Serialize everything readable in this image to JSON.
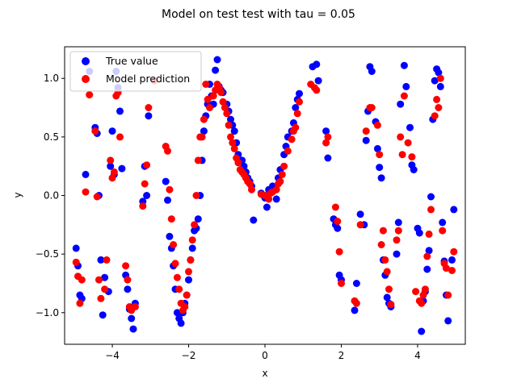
{
  "chart_data": {
    "type": "scatter",
    "title": "Model on test test with tau = 0.05",
    "xlabel": "x",
    "ylabel": "y",
    "xlim": [
      -5.25,
      5.25
    ],
    "ylim": [
      -1.27,
      1.27
    ],
    "x_ticks": [
      -4,
      -2,
      0,
      2,
      4
    ],
    "y_ticks": [
      -1.0,
      -0.5,
      0.0,
      0.5,
      1.0
    ],
    "x_tick_labels": [
      "−4",
      "−2",
      "0",
      "2",
      "4"
    ],
    "y_tick_labels": [
      "−1.0",
      "−0.5",
      "0.0",
      "0.5",
      "1.0"
    ],
    "grid": false,
    "legend_position": "top-left",
    "series": [
      {
        "name": "True value",
        "color": "#0000ff",
        "points": [
          [
            -4.95,
            -0.45
          ],
          [
            -4.9,
            -0.6
          ],
          [
            -4.85,
            -0.85
          ],
          [
            -4.8,
            -0.88
          ],
          [
            -4.7,
            0.18
          ],
          [
            -4.6,
            1.06
          ],
          [
            -4.45,
            0.58
          ],
          [
            -4.4,
            0.53
          ],
          [
            -4.35,
            0.0
          ],
          [
            -4.3,
            -0.55
          ],
          [
            -4.25,
            -1.02
          ],
          [
            -4.2,
            -0.7
          ],
          [
            -4.1,
            -0.82
          ],
          [
            -4.05,
            0.25
          ],
          [
            -4.0,
            0.55
          ],
          [
            -3.95,
            0.18
          ],
          [
            -3.9,
            1.06
          ],
          [
            -3.85,
            0.92
          ],
          [
            -3.8,
            0.72
          ],
          [
            -3.75,
            0.23
          ],
          [
            -3.65,
            -0.68
          ],
          [
            -3.6,
            -0.8
          ],
          [
            -3.55,
            -0.97
          ],
          [
            -3.5,
            -1.05
          ],
          [
            -3.45,
            -1.14
          ],
          [
            -3.4,
            -0.92
          ],
          [
            -3.2,
            -0.05
          ],
          [
            -3.15,
            0.25
          ],
          [
            -3.1,
            0.0
          ],
          [
            -3.05,
            0.68
          ],
          [
            -2.9,
            0.98
          ],
          [
            -2.6,
            0.12
          ],
          [
            -2.55,
            -0.04
          ],
          [
            -2.5,
            -0.35
          ],
          [
            -2.45,
            -0.45
          ],
          [
            -2.4,
            -0.6
          ],
          [
            -2.35,
            -0.8
          ],
          [
            -2.3,
            -1.0
          ],
          [
            -2.25,
            -1.05
          ],
          [
            -2.2,
            -1.09
          ],
          [
            -2.15,
            -1.0
          ],
          [
            -2.1,
            -0.92
          ],
          [
            -2.05,
            -0.85
          ],
          [
            -2.0,
            -0.72
          ],
          [
            -1.95,
            -0.55
          ],
          [
            -1.9,
            -0.45
          ],
          [
            -1.85,
            -0.3
          ],
          [
            -1.8,
            -0.28
          ],
          [
            -1.75,
            -0.2
          ],
          [
            -1.7,
            0.0
          ],
          [
            -1.65,
            0.3
          ],
          [
            -1.6,
            0.55
          ],
          [
            -1.55,
            0.68
          ],
          [
            -1.5,
            0.78
          ],
          [
            -1.45,
            0.95
          ],
          [
            -1.4,
            0.85
          ],
          [
            -1.35,
            0.78
          ],
          [
            -1.3,
            1.07
          ],
          [
            -1.25,
            1.16
          ],
          [
            -1.2,
            0.93
          ],
          [
            -1.15,
            0.9
          ],
          [
            -1.1,
            0.88
          ],
          [
            -1.0,
            0.78
          ],
          [
            -0.95,
            0.72
          ],
          [
            -0.9,
            0.65
          ],
          [
            -0.85,
            0.6
          ],
          [
            -0.8,
            0.55
          ],
          [
            -0.75,
            0.45
          ],
          [
            -0.7,
            0.35
          ],
          [
            -0.6,
            0.3
          ],
          [
            -0.55,
            0.25
          ],
          [
            -0.5,
            0.2
          ],
          [
            -0.45,
            0.15
          ],
          [
            -0.4,
            0.12
          ],
          [
            -0.35,
            0.08
          ],
          [
            -0.3,
            -0.21
          ],
          [
            -0.1,
            0.02
          ],
          [
            0.0,
            -0.02
          ],
          [
            0.05,
            -0.1
          ],
          [
            0.1,
            0.05
          ],
          [
            0.2,
            0.08
          ],
          [
            0.3,
            -0.03
          ],
          [
            0.35,
            0.15
          ],
          [
            0.4,
            0.22
          ],
          [
            0.5,
            0.35
          ],
          [
            0.55,
            0.42
          ],
          [
            0.6,
            0.5
          ],
          [
            0.7,
            0.55
          ],
          [
            0.75,
            0.62
          ],
          [
            0.8,
            0.75
          ],
          [
            0.85,
            0.82
          ],
          [
            0.9,
            0.87
          ],
          [
            1.25,
            1.1
          ],
          [
            1.35,
            1.12
          ],
          [
            1.4,
            0.98
          ],
          [
            1.6,
            0.55
          ],
          [
            1.65,
            0.32
          ],
          [
            1.8,
            -0.2
          ],
          [
            1.85,
            -0.25
          ],
          [
            1.9,
            -0.28
          ],
          [
            1.95,
            -0.68
          ],
          [
            2.0,
            -0.72
          ],
          [
            2.35,
            -0.98
          ],
          [
            2.4,
            -0.75
          ],
          [
            2.5,
            -0.16
          ],
          [
            2.6,
            -0.25
          ],
          [
            2.65,
            0.47
          ],
          [
            2.7,
            0.72
          ],
          [
            2.75,
            1.1
          ],
          [
            2.8,
            1.06
          ],
          [
            2.9,
            0.63
          ],
          [
            2.95,
            0.4
          ],
          [
            3.0,
            0.24
          ],
          [
            3.05,
            0.15
          ],
          [
            3.1,
            -0.55
          ],
          [
            3.15,
            -0.68
          ],
          [
            3.2,
            -0.87
          ],
          [
            3.25,
            -0.92
          ],
          [
            3.3,
            -0.95
          ],
          [
            3.45,
            -0.5
          ],
          [
            3.5,
            -0.23
          ],
          [
            3.55,
            0.78
          ],
          [
            3.65,
            1.11
          ],
          [
            3.7,
            0.93
          ],
          [
            3.8,
            0.58
          ],
          [
            3.85,
            0.26
          ],
          [
            3.9,
            0.22
          ],
          [
            4.0,
            -0.28
          ],
          [
            4.05,
            -0.32
          ],
          [
            4.1,
            -1.16
          ],
          [
            4.15,
            -0.9
          ],
          [
            4.2,
            -0.82
          ],
          [
            4.25,
            -0.63
          ],
          [
            4.3,
            -0.47
          ],
          [
            4.35,
            -0.01
          ],
          [
            4.4,
            0.65
          ],
          [
            4.45,
            0.98
          ],
          [
            4.5,
            1.08
          ],
          [
            4.55,
            1.05
          ],
          [
            4.6,
            0.93
          ],
          [
            4.65,
            -0.23
          ],
          [
            4.7,
            -0.56
          ],
          [
            4.75,
            -0.85
          ],
          [
            4.8,
            -1.07
          ],
          [
            4.9,
            -0.55
          ],
          [
            4.95,
            -0.12
          ]
        ]
      },
      {
        "name": "Model prediction",
        "color": "#ff0000",
        "points": [
          [
            -4.95,
            -0.57
          ],
          [
            -4.9,
            -0.69
          ],
          [
            -4.85,
            -0.92
          ],
          [
            -4.8,
            -0.72
          ],
          [
            -4.7,
            0.03
          ],
          [
            -4.6,
            0.86
          ],
          [
            -4.45,
            0.55
          ],
          [
            -4.4,
            -0.01
          ],
          [
            -4.35,
            -0.72
          ],
          [
            -4.3,
            -0.88
          ],
          [
            -4.2,
            -0.8
          ],
          [
            -4.15,
            -0.55
          ],
          [
            -4.05,
            0.3
          ],
          [
            -4.0,
            0.15
          ],
          [
            -3.95,
            0.2
          ],
          [
            -3.9,
            0.85
          ],
          [
            -3.85,
            0.88
          ],
          [
            -3.8,
            0.5
          ],
          [
            -3.65,
            -0.6
          ],
          [
            -3.6,
            -0.72
          ],
          [
            -3.55,
            -0.95
          ],
          [
            -3.5,
            -0.98
          ],
          [
            -3.4,
            -0.95
          ],
          [
            -3.2,
            -0.09
          ],
          [
            -3.15,
            0.1
          ],
          [
            -3.1,
            0.26
          ],
          [
            -3.05,
            0.75
          ],
          [
            -2.9,
            0.98
          ],
          [
            -2.6,
            0.42
          ],
          [
            -2.55,
            0.38
          ],
          [
            -2.5,
            0.05
          ],
          [
            -2.45,
            -0.2
          ],
          [
            -2.4,
            -0.42
          ],
          [
            -2.35,
            -0.58
          ],
          [
            -2.3,
            -0.7
          ],
          [
            -2.25,
            -0.8
          ],
          [
            -2.2,
            -0.92
          ],
          [
            -2.15,
            -0.98
          ],
          [
            -2.1,
            -0.95
          ],
          [
            -2.05,
            -0.85
          ],
          [
            -2.0,
            -0.65
          ],
          [
            -1.95,
            -0.55
          ],
          [
            -1.9,
            -0.38
          ],
          [
            -1.85,
            -0.25
          ],
          [
            -1.8,
            0.0
          ],
          [
            -1.75,
            0.3
          ],
          [
            -1.7,
            0.5
          ],
          [
            -1.65,
            0.5
          ],
          [
            -1.6,
            0.65
          ],
          [
            -1.55,
            0.95
          ],
          [
            -1.5,
            0.82
          ],
          [
            -1.45,
            0.75
          ],
          [
            -1.35,
            0.85
          ],
          [
            -1.3,
            0.9
          ],
          [
            -1.25,
            0.95
          ],
          [
            -1.2,
            0.92
          ],
          [
            -1.15,
            0.88
          ],
          [
            -1.1,
            0.8
          ],
          [
            -1.05,
            0.75
          ],
          [
            -1.0,
            0.7
          ],
          [
            -0.95,
            0.6
          ],
          [
            -0.9,
            0.5
          ],
          [
            -0.85,
            0.45
          ],
          [
            -0.8,
            0.4
          ],
          [
            -0.75,
            0.32
          ],
          [
            -0.7,
            0.28
          ],
          [
            -0.65,
            0.22
          ],
          [
            -0.6,
            0.2
          ],
          [
            -0.55,
            0.18
          ],
          [
            -0.5,
            0.15
          ],
          [
            -0.45,
            0.12
          ],
          [
            -0.4,
            0.1
          ],
          [
            -0.35,
            0.05
          ],
          [
            -0.1,
            0.01
          ],
          [
            0.0,
            0.0
          ],
          [
            0.1,
            -0.03
          ],
          [
            0.15,
            0.02
          ],
          [
            0.2,
            0.03
          ],
          [
            0.3,
            0.05
          ],
          [
            0.35,
            0.1
          ],
          [
            0.4,
            0.12
          ],
          [
            0.45,
            0.18
          ],
          [
            0.5,
            0.25
          ],
          [
            0.6,
            0.38
          ],
          [
            0.7,
            0.48
          ],
          [
            0.75,
            0.55
          ],
          [
            0.8,
            0.58
          ],
          [
            0.85,
            0.7
          ],
          [
            0.9,
            0.8
          ],
          [
            1.2,
            0.95
          ],
          [
            1.3,
            0.92
          ],
          [
            1.35,
            0.9
          ],
          [
            1.6,
            0.45
          ],
          [
            1.65,
            0.5
          ],
          [
            1.85,
            -0.1
          ],
          [
            1.9,
            -0.22
          ],
          [
            1.95,
            -0.48
          ],
          [
            2.0,
            -0.75
          ],
          [
            2.35,
            -0.9
          ],
          [
            2.4,
            -0.92
          ],
          [
            2.5,
            -0.25
          ],
          [
            2.65,
            0.55
          ],
          [
            2.75,
            0.75
          ],
          [
            2.8,
            0.75
          ],
          [
            2.95,
            0.6
          ],
          [
            3.0,
            0.35
          ],
          [
            3.05,
            -0.42
          ],
          [
            3.1,
            -0.3
          ],
          [
            3.15,
            -0.55
          ],
          [
            3.2,
            -0.65
          ],
          [
            3.25,
            -0.8
          ],
          [
            3.3,
            -0.93
          ],
          [
            3.45,
            -0.38
          ],
          [
            3.5,
            -0.3
          ],
          [
            3.55,
            0.5
          ],
          [
            3.6,
            0.35
          ],
          [
            3.65,
            0.85
          ],
          [
            3.75,
            0.45
          ],
          [
            3.85,
            0.33
          ],
          [
            3.95,
            -0.82
          ],
          [
            4.05,
            -0.9
          ],
          [
            4.1,
            -0.92
          ],
          [
            4.15,
            -0.85
          ],
          [
            4.2,
            -0.8
          ],
          [
            4.25,
            -0.52
          ],
          [
            4.3,
            -0.33
          ],
          [
            4.35,
            -0.12
          ],
          [
            4.45,
            0.68
          ],
          [
            4.5,
            0.82
          ],
          [
            4.55,
            0.75
          ],
          [
            4.6,
            1.0
          ],
          [
            4.65,
            -0.3
          ],
          [
            4.7,
            -0.58
          ],
          [
            4.75,
            -0.62
          ],
          [
            4.8,
            -0.85
          ],
          [
            4.9,
            -0.64
          ],
          [
            4.95,
            -0.48
          ]
        ]
      }
    ]
  }
}
